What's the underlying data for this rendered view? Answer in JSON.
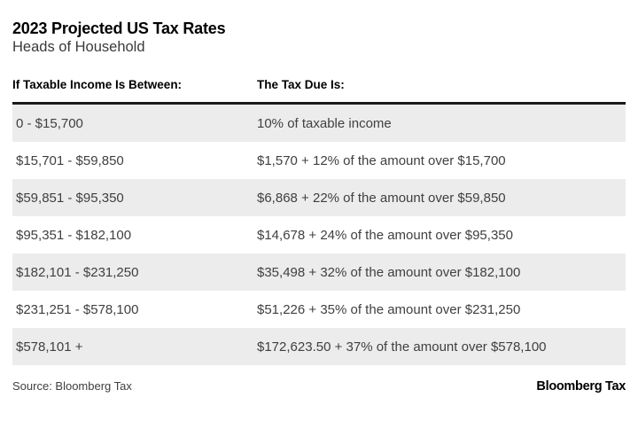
{
  "colors": {
    "text_primary": "#000000",
    "text_secondary": "#3a3a3a",
    "row_text": "#404040",
    "row_stripe": "#ececec",
    "divider": "#1a1a1a"
  },
  "header": {
    "title": "2023 Projected US Tax Rates",
    "subtitle": "Heads of Household"
  },
  "table": {
    "columns": [
      "If Taxable Income Is Between:",
      "The Tax Due Is:"
    ],
    "rows": [
      [
        "0 - $15,700",
        "10% of taxable income"
      ],
      [
        "$15,701 - $59,850",
        "$1,570 + 12% of the amount over $15,700"
      ],
      [
        "$59,851 - $95,350",
        "$6,868 + 22% of the amount over $59,850"
      ],
      [
        "$95,351 - $182,100",
        "$14,678 + 24% of the amount over $95,350"
      ],
      [
        "$182,101 - $231,250",
        "$35,498 + 32% of the amount over $182,100"
      ],
      [
        "$231,251 - $578,100",
        "$51,226 + 35% of the amount over $231,250"
      ],
      [
        "$578,101 +",
        "$172,623.50 + 37% of the amount over $578,100"
      ]
    ]
  },
  "footer": {
    "source_label": "Source: Bloomberg Tax",
    "brand": "Bloomberg Tax"
  },
  "chart_data": {
    "type": "table",
    "title": "2023 Projected US Tax Rates",
    "subtitle": "Heads of Household",
    "columns": [
      "If Taxable Income Is Between:",
      "The Tax Due Is:"
    ],
    "rows": [
      [
        "0 - $15,700",
        "10% of taxable income"
      ],
      [
        "$15,701 - $59,850",
        "$1,570 + 12% of the amount over $15,700"
      ],
      [
        "$59,851 - $95,350",
        "$6,868 + 22% of the amount over $59,850"
      ],
      [
        "$95,351 - $182,100",
        "$14,678 + 24% of the amount over $95,350"
      ],
      [
        "$182,101 - $231,250",
        "$35,498 + 32% of the amount over $182,100"
      ],
      [
        "$231,251 - $578,100",
        "$51,226 + 35% of the amount over $231,250"
      ],
      [
        "$578,101 +",
        "$172,623.50 + 37% of the amount over $578,100"
      ]
    ],
    "source": "Source: Bloomberg Tax",
    "layout": {
      "striped_rows": "odd",
      "header_rule": true,
      "legend": "none",
      "grid": "off"
    }
  }
}
